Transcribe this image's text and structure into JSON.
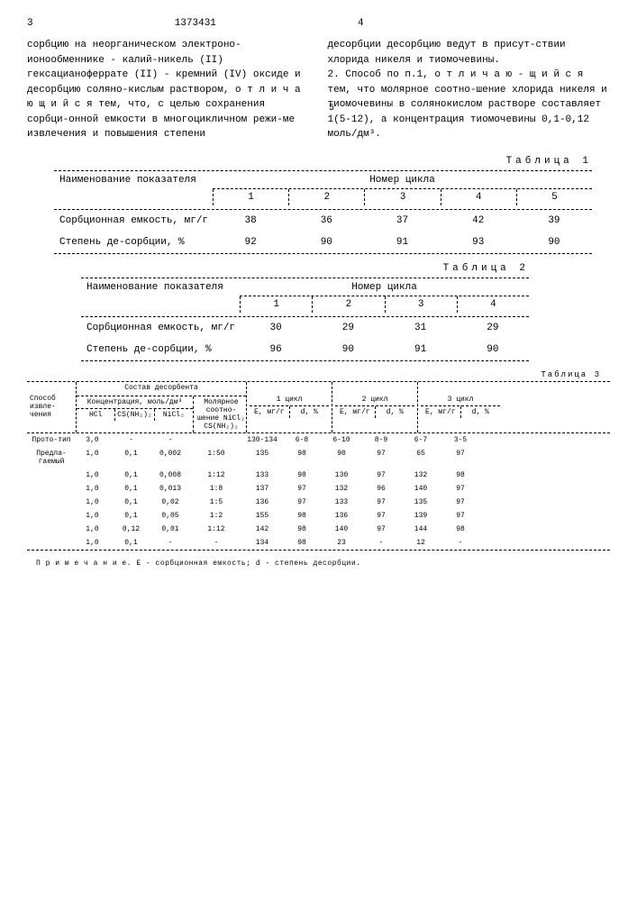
{
  "header": {
    "page_left": "3",
    "doc_number": "1373431",
    "page_right": "4"
  },
  "col_left_text": "сорбцию на неорганическом электроно-ионообменнике - калий-никель (II) гексацианоферрате (II) - кремний (IV) оксиде и десорбцию соляно-кислым раствором, о т л и ч а ю щ и й с я тем, что, с целью сохранения сорбци-онной емкости в многоцикличном режи-ме извлечения и повышения степени",
  "marker5": "5",
  "col_right_text": "десорбции десорбцию ведут в присут-ствии хлорида никеля и тиомочевины.\n2. Способ по п.1, о т л и ч а ю - щ и й с я  тем, что молярное соотно-шение хлорида никеля и тиомочевины в солянокислом растворе составляет 1(5-12), а концентрация тиомочевины 0,1-0,12 моль/дм³.",
  "table1": {
    "label": "Таблица 1",
    "name_header": "Наименование показателя",
    "cycle_header": "Номер цикла",
    "cycles": [
      "1",
      "2",
      "3",
      "4",
      "5"
    ],
    "rows": [
      {
        "name": "Сорбционная емкость, мг/г",
        "vals": [
          "38",
          "36",
          "37",
          "42",
          "39"
        ]
      },
      {
        "name": "Степень де-сорбции, %",
        "vals": [
          "92",
          "90",
          "91",
          "93",
          "90"
        ]
      }
    ]
  },
  "table2": {
    "label": "Таблица 2",
    "name_header": "Наименование показателя",
    "cycle_header": "Номер цикла",
    "cycles": [
      "1",
      "2",
      "3",
      "4"
    ],
    "rows": [
      {
        "name": "Сорбционная емкость, мг/г",
        "vals": [
          "30",
          "29",
          "31",
          "29"
        ]
      },
      {
        "name": "Степень де-сорбции, %",
        "vals": [
          "96",
          "90",
          "91",
          "90"
        ]
      }
    ]
  },
  "table3": {
    "label": "Таблица 3",
    "headers": {
      "method": "Способ извле-чения",
      "desorb": "Состав десорбента",
      "conc": "Концентрация, моль/дм³",
      "hcl": "HCl",
      "cs": "CS(NH₂)₂",
      "nicl": "NiCl₂",
      "molar": "Молярное соотно-шение NiCl₂ CS(NH₂)₂",
      "cycle1": "1 цикл",
      "cycle2": "2 цикл",
      "cycle3": "3 цикл",
      "e": "E, мг/г",
      "d": "d, %"
    },
    "rows": [
      {
        "method": "Прото-тип",
        "hcl": "3,0",
        "cs": "-",
        "nicl": "-",
        "molar": "",
        "e1": "130-134",
        "d1": "6-8",
        "e2": "6-10",
        "d2": "8-9",
        "e3": "6-7",
        "d3": "3-5"
      },
      {
        "method": "Предла-гаемый",
        "hcl": "1,0",
        "cs": "0,1",
        "nicl": "0,002",
        "molar": "1:50",
        "e1": "135",
        "d1": "98",
        "e2": "90",
        "d2": "97",
        "e3": "65",
        "d3": "97"
      },
      {
        "method": "",
        "hcl": "1,0",
        "cs": "0,1",
        "nicl": "0,008",
        "molar": "1:12",
        "e1": "133",
        "d1": "98",
        "e2": "130",
        "d2": "97",
        "e3": "132",
        "d3": "98"
      },
      {
        "method": "",
        "hcl": "1,0",
        "cs": "0,1",
        "nicl": "0,013",
        "molar": "1:8",
        "e1": "137",
        "d1": "97",
        "e2": "132",
        "d2": "96",
        "e3": "140",
        "d3": "97"
      },
      {
        "method": "",
        "hcl": "1,0",
        "cs": "0,1",
        "nicl": "0,02",
        "molar": "1:5",
        "e1": "136",
        "d1": "97",
        "e2": "133",
        "d2": "97",
        "e3": "135",
        "d3": "97"
      },
      {
        "method": "",
        "hcl": "1,0",
        "cs": "0,1",
        "nicl": "0,05",
        "molar": "1:2",
        "e1": "155",
        "d1": "98",
        "e2": "136",
        "d2": "97",
        "e3": "139",
        "d3": "97"
      },
      {
        "method": "",
        "hcl": "1,0",
        "cs": "0,12",
        "nicl": "0,01",
        "molar": "1:12",
        "e1": "142",
        "d1": "98",
        "e2": "140",
        "d2": "97",
        "e3": "144",
        "d3": "98"
      },
      {
        "method": "",
        "hcl": "1,0",
        "cs": "0,1",
        "nicl": "-",
        "molar": "-",
        "e1": "134",
        "d1": "98",
        "e2": "23",
        "d2": "-",
        "e3": "12",
        "d3": "-"
      }
    ],
    "note": "П р и м е ч а н и е. E - сорбционная емкость;  d - степень десорбции."
  }
}
